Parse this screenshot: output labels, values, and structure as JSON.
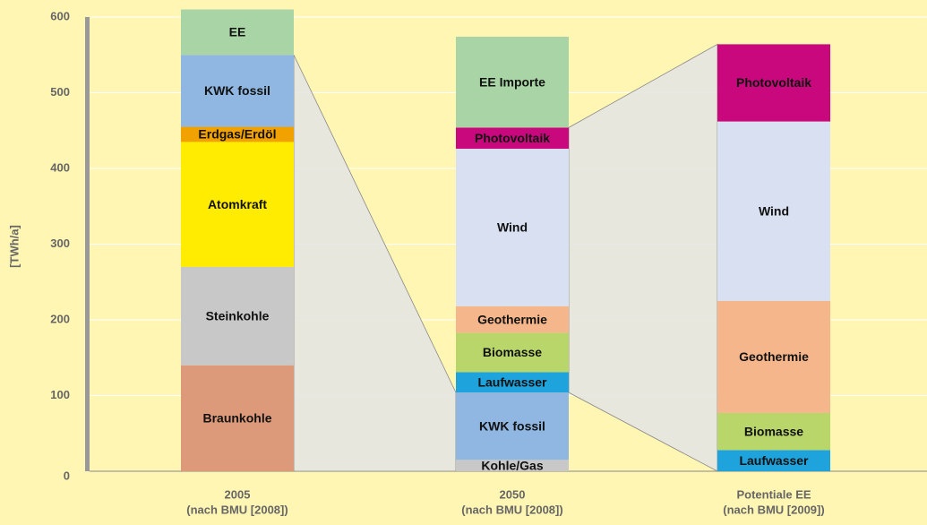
{
  "chart_data": {
    "type": "stacked_bar",
    "y_label": "[TWh/a]",
    "categories": [
      [
        "2005",
        "(nach BMU [2008])"
      ],
      [
        "2050",
        "(nach BMU [2008])"
      ],
      [
        "Potentiale EE",
        "(nach BMU [2009])"
      ]
    ],
    "stacks": [
      {
        "segments": [
          {
            "name": "Braunkohle",
            "value": 140,
            "color": "#dd9a7a"
          },
          {
            "name": "Steinkohle",
            "value": 130,
            "color": "#c8c8c8"
          },
          {
            "name": "Atomkraft",
            "value": 165,
            "color": "#ffec00"
          },
          {
            "name": "Erdgas/Erdöl",
            "value": 20,
            "color": "#f2a200"
          },
          {
            "name": "KWK fossil",
            "value": 95,
            "color": "#8fb7e1"
          },
          {
            "name": "EE",
            "value": 60,
            "color": "#a9d5a6"
          }
        ]
      },
      {
        "segments": [
          {
            "name": "Kohle/Gas",
            "value": 15,
            "color": "#c8c8c8"
          },
          {
            "name": "KWK fossil",
            "value": 89,
            "color": "#8fb7e1"
          },
          {
            "name": "Laufwasser",
            "value": 27,
            "color": "#1fa3dc"
          },
          {
            "name": "Biomasse",
            "value": 52,
            "color": "#b9d66b"
          },
          {
            "name": "Geothermie",
            "value": 35,
            "color": "#f5b68b"
          },
          {
            "name": "Wind",
            "value": 208,
            "color": "#d8e0f1"
          },
          {
            "name": "Photovoltaik",
            "value": 28,
            "color": "#c8087c"
          },
          {
            "name": "EE Importe",
            "value": 120,
            "color": "#a9d5a6"
          }
        ]
      },
      {
        "segments": [
          {
            "name": "Laufwasser",
            "value": 28,
            "color": "#1fa3dc"
          },
          {
            "name": "Biomasse",
            "value": 49,
            "color": "#b9d66b"
          },
          {
            "name": "Geothermie",
            "value": 148,
            "color": "#f5b68b"
          },
          {
            "name": "Wind",
            "value": 237,
            "color": "#d8e0f1"
          },
          {
            "name": "Photovoltaik",
            "value": 102,
            "color": "#c8087c"
          }
        ]
      }
    ],
    "ylim": [
      0,
      600
    ],
    "yticks": [
      0,
      100,
      200,
      300,
      400,
      500,
      600
    ],
    "grid": true
  }
}
